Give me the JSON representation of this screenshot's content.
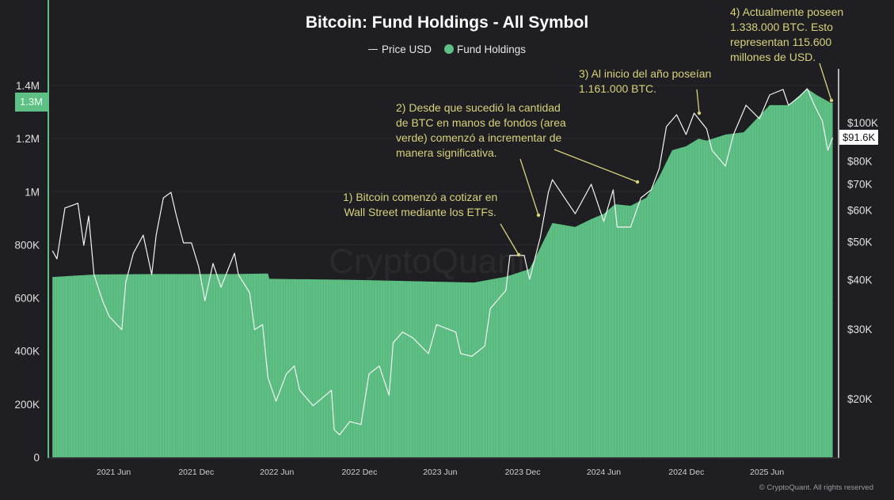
{
  "title": "Bitcoin: Fund Holdings - All Symbol",
  "legend": {
    "price_label": "Price USD",
    "holdings_label": "Fund Holdings"
  },
  "colors": {
    "background": "#1e1e23",
    "holdings": "#5ec084",
    "price": "#ffffff",
    "annotation": "#d8d27a"
  },
  "current_price_label": "$91.6K",
  "current_holdings_label": "1.3M",
  "watermark": "CryptoQuant",
  "copyright": "© CryptoQuant. All rights reserved",
  "annotations": [
    {
      "lines": [
        "1) Bitcoin comenzó a cotizar en",
        "Wall Street mediante los ETFs."
      ]
    },
    {
      "lines": [
        "2) Desde que sucedió la cantidad",
        "de BTC en manos de fondos (area",
        "verde) comenzó a incrementar de",
        "manera significativa."
      ]
    },
    {
      "lines": [
        "3) Al inicio del año poseían",
        "1.161.000 BTC."
      ]
    },
    {
      "lines": [
        "4) Actualmente poseen",
        "1.338.000 BTC. Esto",
        "representan 115.600",
        "millones de USD."
      ]
    }
  ],
  "chart_data": {
    "type": "area+line",
    "title": "Bitcoin: Fund Holdings - All Symbol",
    "legend_position": "top-center",
    "grid": true,
    "x_ticks": [
      {
        "date": "2021-06-01",
        "label": "2021 Jun"
      },
      {
        "date": "2021-12-01",
        "label": "2021 Dec"
      },
      {
        "date": "2022-06-01",
        "label": "2022 Jun"
      },
      {
        "date": "2022-12-01",
        "label": "2022 Dec"
      },
      {
        "date": "2023-06-01",
        "label": "2023 Jun"
      },
      {
        "date": "2023-12-01",
        "label": "2023 Dec"
      },
      {
        "date": "2024-06-01",
        "label": "2024 Jun"
      },
      {
        "date": "2024-12-01",
        "label": "2024 Dec"
      },
      {
        "date": "2025-06-01",
        "label": "2025 Jun"
      }
    ],
    "left_axis": {
      "scale": "linear",
      "range": [
        0,
        1400000
      ],
      "ticks": [
        {
          "v": 0,
          "label": "0"
        },
        {
          "v": 200000,
          "label": "200K"
        },
        {
          "v": 400000,
          "label": "400K"
        },
        {
          "v": 600000,
          "label": "600K"
        },
        {
          "v": 800000,
          "label": "800K"
        },
        {
          "v": 1000000,
          "label": "1M"
        },
        {
          "v": 1200000,
          "label": "1.2M"
        },
        {
          "v": 1400000,
          "label": "1.4M"
        }
      ]
    },
    "right_axis": {
      "scale": "log",
      "ticks": [
        {
          "v": 20000,
          "label": "$20K"
        },
        {
          "v": 30000,
          "label": "$30K"
        },
        {
          "v": 40000,
          "label": "$40K"
        },
        {
          "v": 50000,
          "label": "$50K"
        },
        {
          "v": 60000,
          "label": "$60K"
        },
        {
          "v": 70000,
          "label": "$70K"
        },
        {
          "v": 80000,
          "label": "$80K"
        },
        {
          "v": 100000,
          "label": "$100K"
        }
      ]
    },
    "series": [
      {
        "name": "Fund Holdings",
        "type": "area",
        "axis": "left",
        "points": [
          [
            "2021-02-24",
            679000
          ],
          [
            "2021-05-28",
            688000
          ],
          [
            "2021-10-14",
            690000
          ],
          [
            "2022-04-07",
            690000
          ],
          [
            "2022-06-21",
            692000
          ],
          [
            "2022-06-24",
            672000
          ],
          [
            "2022-12-30",
            668000
          ],
          [
            "2023-09-25",
            658000
          ],
          [
            "2023-12-05",
            680000
          ],
          [
            "2024-01-27",
            709000
          ],
          [
            "2024-02-20",
            789000
          ],
          [
            "2024-03-18",
            882000
          ],
          [
            "2024-05-08",
            867000
          ],
          [
            "2024-06-13",
            897000
          ],
          [
            "2024-07-11",
            917000
          ],
          [
            "2024-08-05",
            953000
          ],
          [
            "2024-09-09",
            947000
          ],
          [
            "2024-10-14",
            977000
          ],
          [
            "2024-11-12",
            1057000
          ],
          [
            "2024-12-11",
            1156000
          ],
          [
            "2025-01-11",
            1171000
          ],
          [
            "2025-02-08",
            1200000
          ],
          [
            "2025-02-26",
            1192000
          ],
          [
            "2025-04-09",
            1215000
          ],
          [
            "2025-05-20",
            1224000
          ],
          [
            "2025-07-17",
            1326000
          ],
          [
            "2025-08-28",
            1326000
          ],
          [
            "2025-10-09",
            1388000
          ],
          [
            "2025-10-30",
            1364000
          ],
          [
            "2025-11-30",
            1335000
          ],
          [
            "2025-12-05",
            1335000
          ]
        ]
      },
      {
        "name": "Price USD",
        "type": "line",
        "axis": "right",
        "points": [
          [
            "2021-02-24",
            47400
          ],
          [
            "2021-03-06",
            45200
          ],
          [
            "2021-03-24",
            60800
          ],
          [
            "2021-04-22",
            62500
          ],
          [
            "2021-05-05",
            48900
          ],
          [
            "2021-05-16",
            58000
          ],
          [
            "2021-05-28",
            41200
          ],
          [
            "2021-06-16",
            35400
          ],
          [
            "2021-07-01",
            32300
          ],
          [
            "2021-07-29",
            29900
          ],
          [
            "2021-08-07",
            39400
          ],
          [
            "2021-08-24",
            46700
          ],
          [
            "2021-09-15",
            51900
          ],
          [
            "2021-10-04",
            41200
          ],
          [
            "2021-10-14",
            51900
          ],
          [
            "2021-10-30",
            64500
          ],
          [
            "2021-11-16",
            66600
          ],
          [
            "2021-11-27",
            58800
          ],
          [
            "2021-12-14",
            49600
          ],
          [
            "2022-01-01",
            49600
          ],
          [
            "2022-01-17",
            43200
          ],
          [
            "2022-01-31",
            35400
          ],
          [
            "2022-02-18",
            44000
          ],
          [
            "2022-03-08",
            38300
          ],
          [
            "2022-04-07",
            46700
          ],
          [
            "2022-04-16",
            41200
          ],
          [
            "2022-05-11",
            37100
          ],
          [
            "2022-05-22",
            29900
          ],
          [
            "2022-06-09",
            30800
          ],
          [
            "2022-06-21",
            22600
          ],
          [
            "2022-07-09",
            19700
          ],
          [
            "2022-08-01",
            23100
          ],
          [
            "2022-08-19",
            24200
          ],
          [
            "2022-08-31",
            21000
          ],
          [
            "2022-09-30",
            19200
          ],
          [
            "2022-11-10",
            21000
          ],
          [
            "2022-11-16",
            16700
          ],
          [
            "2022-11-28",
            16200
          ],
          [
            "2022-12-21",
            17500
          ],
          [
            "2023-01-15",
            17200
          ],
          [
            "2023-02-02",
            23100
          ],
          [
            "2023-02-25",
            24200
          ],
          [
            "2023-03-19",
            20400
          ],
          [
            "2023-03-28",
            27700
          ],
          [
            "2023-04-18",
            29500
          ],
          [
            "2023-05-11",
            28500
          ],
          [
            "2023-06-15",
            26000
          ],
          [
            "2023-07-03",
            30800
          ],
          [
            "2023-08-15",
            29500
          ],
          [
            "2023-08-26",
            26000
          ],
          [
            "2023-09-20",
            25600
          ],
          [
            "2023-10-19",
            27200
          ],
          [
            "2023-10-31",
            33800
          ],
          [
            "2023-12-05",
            37600
          ],
          [
            "2023-12-14",
            46100
          ],
          [
            "2024-01-15",
            46100
          ],
          [
            "2024-01-27",
            40100
          ],
          [
            "2024-02-20",
            51200
          ],
          [
            "2024-03-09",
            66600
          ],
          [
            "2024-03-18",
            71700
          ],
          [
            "2024-05-08",
            58800
          ],
          [
            "2024-06-13",
            69800
          ],
          [
            "2024-07-11",
            56200
          ],
          [
            "2024-08-01",
            67600
          ],
          [
            "2024-08-10",
            54400
          ],
          [
            "2024-09-09",
            54400
          ],
          [
            "2024-10-02",
            64500
          ],
          [
            "2024-10-25",
            67600
          ],
          [
            "2024-11-12",
            76500
          ],
          [
            "2024-11-28",
            97700
          ],
          [
            "2024-12-21",
            104700
          ],
          [
            "2025-01-11",
            93300
          ],
          [
            "2025-01-29",
            105700
          ],
          [
            "2025-02-26",
            96400
          ],
          [
            "2025-03-10",
            85100
          ],
          [
            "2025-04-09",
            77600
          ],
          [
            "2025-04-27",
            93300
          ],
          [
            "2025-05-25",
            110700
          ],
          [
            "2025-06-24",
            102300
          ],
          [
            "2025-07-17",
            117500
          ],
          [
            "2025-08-16",
            121400
          ],
          [
            "2025-08-28",
            110700
          ],
          [
            "2025-09-20",
            115900
          ],
          [
            "2025-10-09",
            121900
          ],
          [
            "2025-10-25",
            110700
          ],
          [
            "2025-11-12",
            100900
          ],
          [
            "2025-11-24",
            85100
          ],
          [
            "2025-12-05",
            91600
          ]
        ]
      }
    ]
  }
}
